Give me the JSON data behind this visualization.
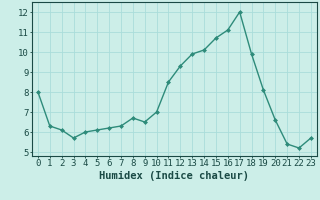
{
  "x": [
    0,
    1,
    2,
    3,
    4,
    5,
    6,
    7,
    8,
    9,
    10,
    11,
    12,
    13,
    14,
    15,
    16,
    17,
    18,
    19,
    20,
    21,
    22,
    23
  ],
  "y": [
    8.0,
    6.3,
    6.1,
    5.7,
    6.0,
    6.1,
    6.2,
    6.3,
    6.7,
    6.5,
    7.0,
    8.5,
    9.3,
    9.9,
    10.1,
    10.7,
    11.1,
    12.0,
    9.9,
    8.1,
    6.6,
    5.4,
    5.2,
    5.7
  ],
  "line_color": "#2e8b7a",
  "marker": "D",
  "marker_size": 2.0,
  "bg_color": "#cceee8",
  "grid_color": "#aaddda",
  "xlabel": "Humidex (Indice chaleur)",
  "xlim": [
    -0.5,
    23.5
  ],
  "ylim": [
    4.8,
    12.5
  ],
  "yticks": [
    5,
    6,
    7,
    8,
    9,
    10,
    11,
    12
  ],
  "xticks": [
    0,
    1,
    2,
    3,
    4,
    5,
    6,
    7,
    8,
    9,
    10,
    11,
    12,
    13,
    14,
    15,
    16,
    17,
    18,
    19,
    20,
    21,
    22,
    23
  ],
  "xlabel_fontsize": 7.5,
  "tick_fontsize": 6.5,
  "tick_color": "#1a4a45",
  "line_width": 1.0
}
